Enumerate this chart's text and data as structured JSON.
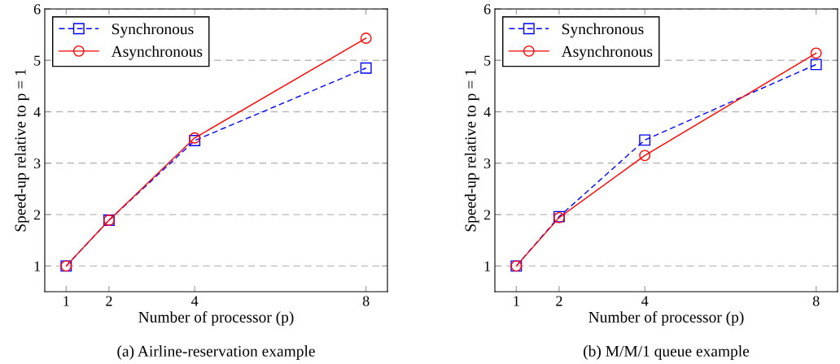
{
  "chart_data": [
    {
      "type": "line",
      "x": [
        1,
        2,
        4,
        8
      ],
      "xlabel": "Number of processor (p)",
      "ylabel": "Speed-up relative to p = 1",
      "annotations": [
        "(a) Airline-reservation example"
      ],
      "xlim": [
        0.5,
        8.5
      ],
      "ylim": [
        0.5,
        6
      ],
      "xticks": [
        1,
        2,
        4,
        8
      ],
      "yticks": [
        1,
        2,
        3,
        4,
        5,
        6
      ],
      "grid": "y",
      "legend": "top left",
      "series": [
        {
          "name": "Synchronous",
          "color": "#0000ff",
          "values": [
            1,
            1.89,
            3.44,
            4.85
          ],
          "marker": "square",
          "line_style": "dashed"
        },
        {
          "name": "Asynchronous",
          "color": "#ff0000",
          "values": [
            1,
            1.89,
            3.49,
            5.43
          ],
          "marker": "circle",
          "line_style": "solid"
        }
      ]
    },
    {
      "type": "line",
      "x": [
        1,
        2,
        4,
        8
      ],
      "xlabel": "Number of processor (p)",
      "ylabel": "Speed-up relative to p = 1",
      "annotations": [
        "(b) M/M/1 queue example"
      ],
      "xlim": [
        0.5,
        8.5
      ],
      "ylim": [
        0.5,
        6
      ],
      "xticks": [
        1,
        2,
        4,
        8
      ],
      "yticks": [
        1,
        2,
        3,
        4,
        5,
        6
      ],
      "grid": "y",
      "legend": "top left",
      "series": [
        {
          "name": "Synchronous",
          "color": "#0000ff",
          "values": [
            1,
            1.96,
            3.45,
            4.92
          ],
          "marker": "square",
          "line_style": "dashed"
        },
        {
          "name": "Asynchronous",
          "color": "#ff0000",
          "values": [
            1,
            1.94,
            3.15,
            5.14
          ],
          "marker": "circle",
          "line_style": "solid"
        }
      ]
    }
  ]
}
